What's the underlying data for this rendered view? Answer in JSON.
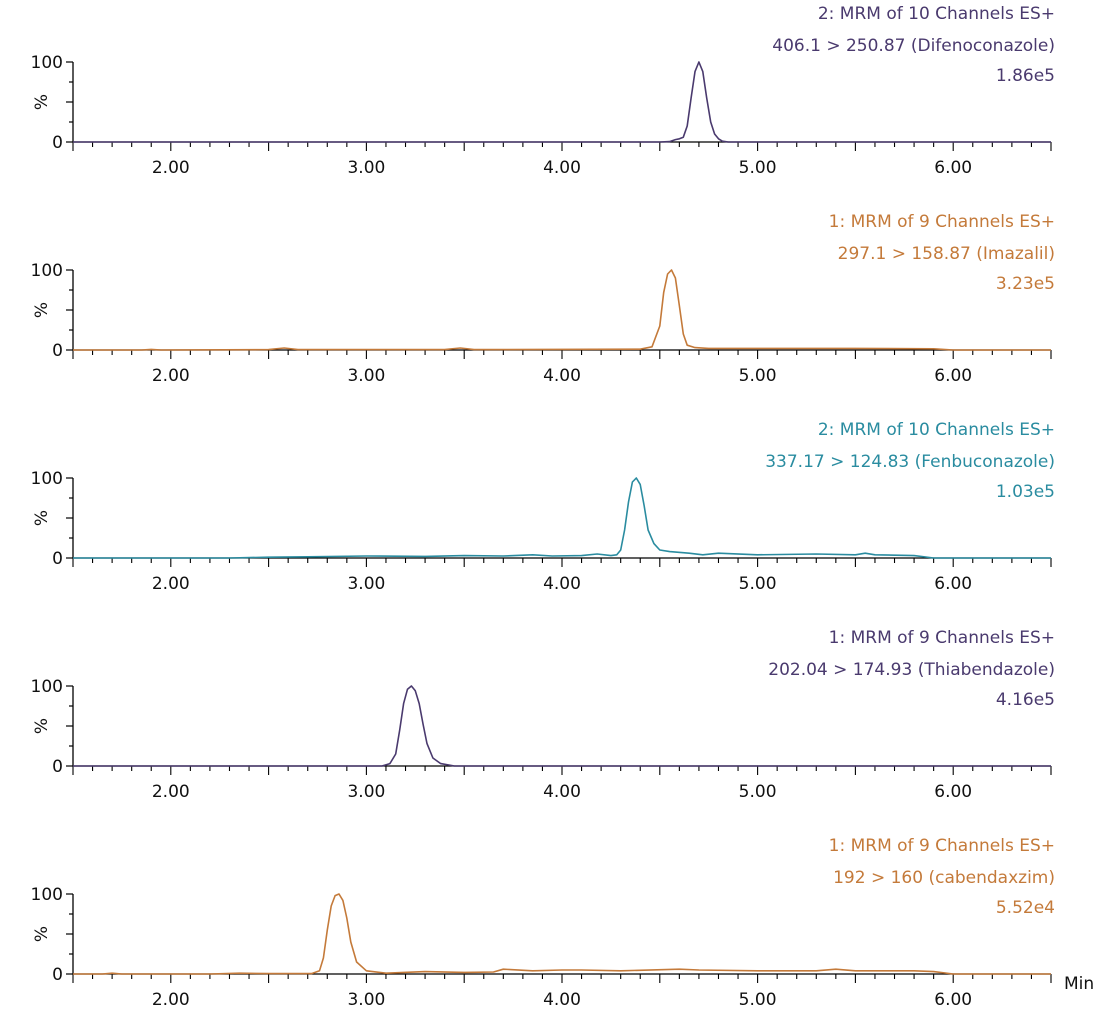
{
  "x_unit_label": "Min",
  "chart_data": [
    {
      "type": "line",
      "title": "2: MRM of 10 Channels ES+",
      "subtitle": "406.1 > 250.87 (Difenoconazole)",
      "intensity": "1.86e5",
      "color": "#4a3a6e",
      "ylabel": "%",
      "xlim": [
        1.5,
        6.5
      ],
      "ylim": [
        0,
        100
      ],
      "y_ticks": [
        "0",
        "100"
      ],
      "x_ticks": [
        "2.00",
        "3.00",
        "4.00",
        "5.00",
        "6.00"
      ],
      "x": [
        1.5,
        4.5,
        4.55,
        4.58,
        4.6,
        4.62,
        4.64,
        4.66,
        4.68,
        4.7,
        4.72,
        4.74,
        4.76,
        4.78,
        4.8,
        4.82,
        4.85,
        6.5
      ],
      "y": [
        0,
        0,
        0.5,
        3,
        4,
        6,
        20,
        55,
        88,
        100,
        88,
        55,
        25,
        10,
        4,
        1,
        0,
        0
      ]
    },
    {
      "type": "line",
      "title": "1: MRM of 9 Channels ES+",
      "subtitle": "297.1 > 158.87 (Imazalil)",
      "intensity": "3.23e5",
      "color": "#c47a3a",
      "ylabel": "%",
      "xlim": [
        1.5,
        6.5
      ],
      "ylim": [
        0,
        100
      ],
      "y_ticks": [
        "0",
        "100"
      ],
      "x_ticks": [
        "2.00",
        "3.00",
        "4.00",
        "5.00",
        "6.00"
      ],
      "x": [
        1.5,
        1.85,
        1.9,
        1.95,
        2.5,
        2.58,
        2.65,
        3.4,
        3.48,
        3.55,
        4.4,
        4.46,
        4.5,
        4.52,
        4.54,
        4.56,
        4.58,
        4.6,
        4.62,
        4.64,
        4.68,
        4.75,
        5.0,
        5.5,
        5.9,
        6.0,
        6.5
      ],
      "y": [
        0,
        0,
        0.8,
        0,
        0.5,
        2.5,
        0.5,
        0.5,
        2.5,
        0.5,
        1,
        4,
        30,
        72,
        95,
        100,
        90,
        55,
        20,
        6,
        3,
        2,
        2,
        2,
        1.5,
        0,
        0
      ]
    },
    {
      "type": "line",
      "title": "2: MRM of 10 Channels ES+",
      "subtitle": "337.17 > 124.83 (Fenbuconazole)",
      "intensity": "1.03e5",
      "color": "#2a8ca0",
      "ylabel": "%",
      "xlim": [
        1.5,
        6.5
      ],
      "ylim": [
        0,
        100
      ],
      "y_ticks": [
        "0",
        "100"
      ],
      "x_ticks": [
        "2.00",
        "3.00",
        "4.00",
        "5.00",
        "6.00"
      ],
      "x": [
        1.5,
        2.3,
        2.5,
        2.7,
        3.0,
        3.3,
        3.5,
        3.7,
        3.85,
        3.95,
        4.1,
        4.18,
        4.25,
        4.28,
        4.3,
        4.32,
        4.34,
        4.36,
        4.38,
        4.4,
        4.42,
        4.44,
        4.47,
        4.5,
        4.55,
        4.65,
        4.72,
        4.8,
        5.0,
        5.3,
        5.5,
        5.55,
        5.6,
        5.8,
        5.9,
        6.5
      ],
      "y": [
        0,
        0,
        1,
        1.5,
        2.5,
        2,
        3,
        2.5,
        4,
        2.5,
        3,
        5,
        3,
        4,
        10,
        35,
        70,
        95,
        100,
        92,
        65,
        35,
        18,
        10,
        8,
        6,
        4,
        6,
        4,
        5,
        4,
        6,
        4,
        3,
        0,
        0
      ]
    },
    {
      "type": "line",
      "title": "1: MRM of 9 Channels ES+",
      "subtitle": "202.04 > 174.93 (Thiabendazole)",
      "intensity": "4.16e5",
      "color": "#4a3a6e",
      "ylabel": "%",
      "xlim": [
        1.5,
        6.5
      ],
      "ylim": [
        0,
        100
      ],
      "y_ticks": [
        "0",
        "100"
      ],
      "x_ticks": [
        "2.00",
        "3.00",
        "4.00",
        "5.00",
        "6.00"
      ],
      "x": [
        1.5,
        3.08,
        3.12,
        3.15,
        3.17,
        3.19,
        3.21,
        3.23,
        3.25,
        3.27,
        3.29,
        3.31,
        3.34,
        3.38,
        3.45,
        6.5
      ],
      "y": [
        0,
        0,
        3,
        15,
        45,
        78,
        96,
        100,
        94,
        78,
        52,
        28,
        10,
        3,
        0,
        0
      ]
    },
    {
      "type": "line",
      "title": "1: MRM of 9 Channels ES+",
      "subtitle": "192 > 160 (cabendaxzim)",
      "intensity": "5.52e4",
      "color": "#c47a3a",
      "ylabel": "%",
      "xlim": [
        1.5,
        6.5
      ],
      "ylim": [
        0,
        100
      ],
      "y_ticks": [
        "0",
        "100"
      ],
      "x_ticks": [
        "2.00",
        "3.00",
        "4.00",
        "5.00",
        "6.00"
      ],
      "x": [
        1.5,
        1.65,
        1.7,
        1.75,
        2.2,
        2.35,
        2.5,
        2.72,
        2.76,
        2.78,
        2.8,
        2.82,
        2.84,
        2.86,
        2.88,
        2.9,
        2.92,
        2.95,
        3.0,
        3.1,
        3.3,
        3.5,
        3.65,
        3.7,
        3.85,
        4.0,
        4.1,
        4.3,
        4.6,
        4.7,
        5.0,
        5.3,
        5.4,
        5.5,
        5.8,
        5.9,
        6.0,
        6.5
      ],
      "y": [
        0,
        0,
        1,
        0,
        0,
        1,
        0.5,
        0.5,
        4,
        20,
        55,
        85,
        98,
        100,
        92,
        70,
        40,
        15,
        4,
        1,
        3,
        2,
        2.5,
        6,
        4,
        5,
        5,
        4,
        6,
        5,
        4,
        4,
        6,
        4,
        4,
        3,
        0,
        0
      ]
    }
  ]
}
